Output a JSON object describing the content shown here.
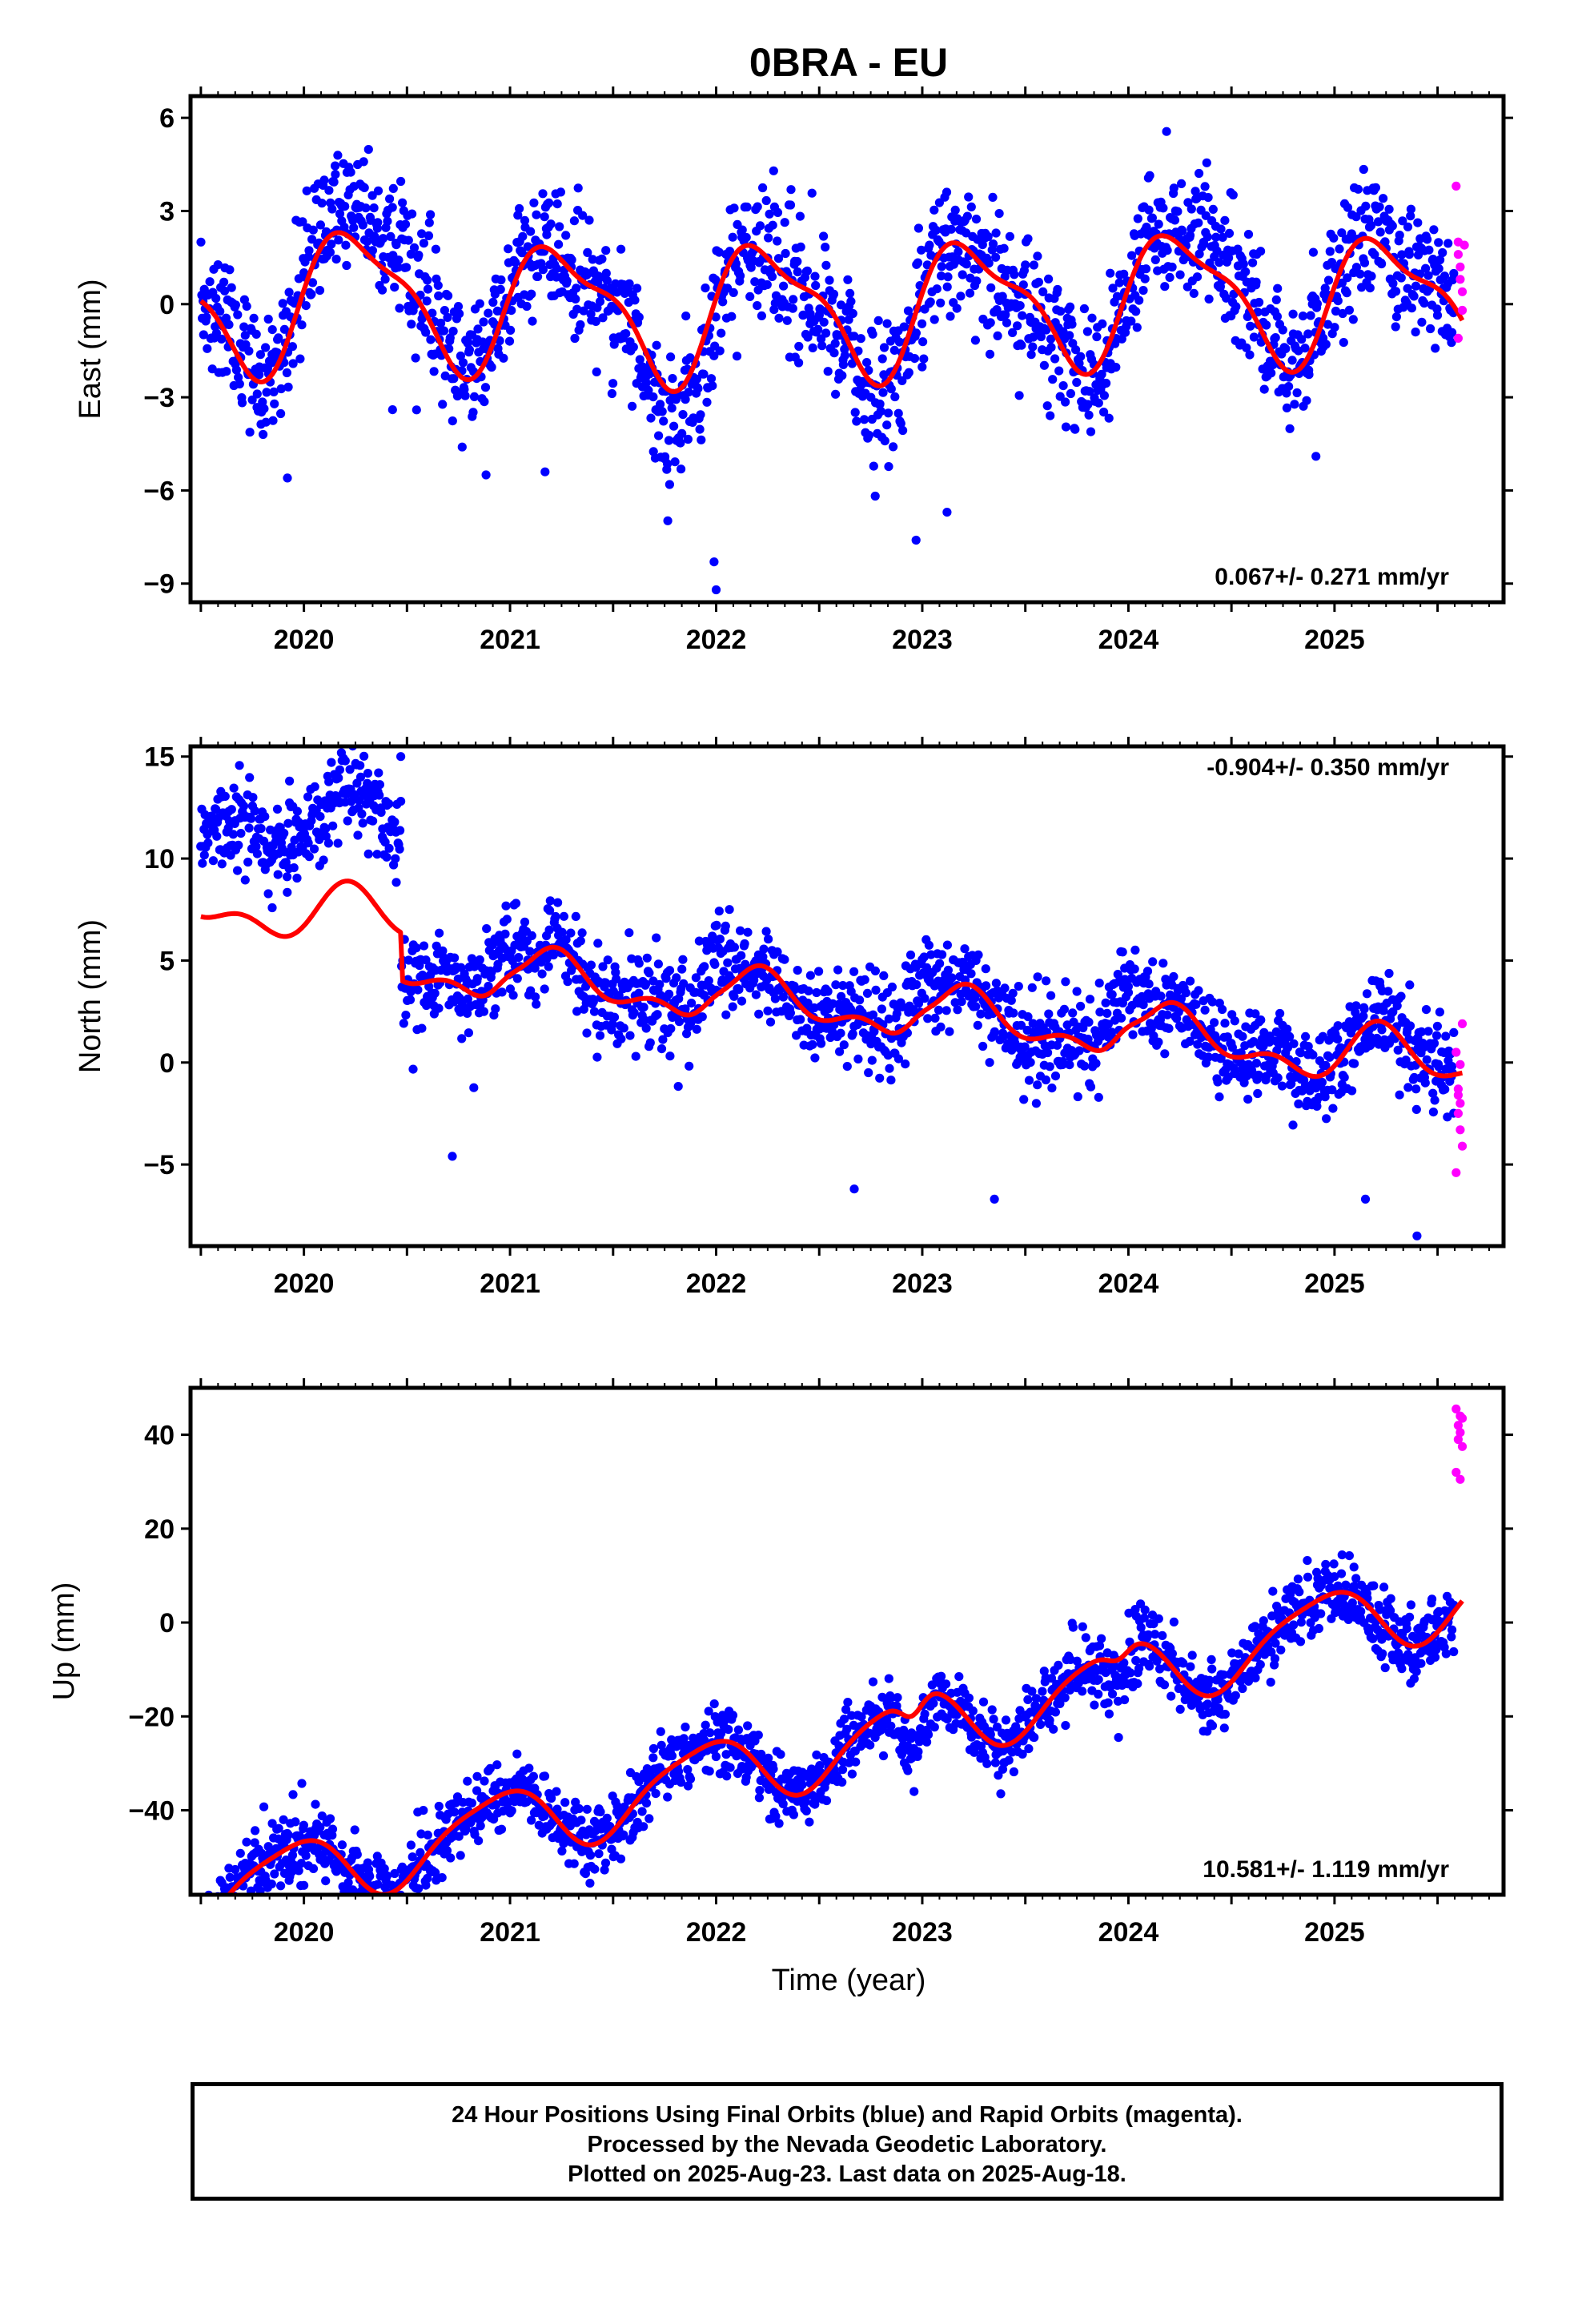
{
  "title": "0BRA - EU",
  "xlabel": "Time (year)",
  "colors": {
    "final": "#0000ff",
    "rapid": "#ff00ff",
    "fit": "#ff0000",
    "axis": "#000000"
  },
  "footer": {
    "line1": "24 Hour Positions Using Final Orbits (blue) and Rapid Orbits (magenta).",
    "line2": "Processed by the Nevada Geodetic Laboratory.",
    "line3": "Plotted on 2025-Aug-23. Last data on 2025-Aug-18."
  },
  "chart_data": [
    {
      "type": "scatter",
      "component": "east",
      "ylabel": "East (mm)",
      "xlim": [
        2019.45,
        2025.82
      ],
      "ylim": [
        -9.6,
        6.7
      ],
      "yticks": [
        -9,
        -6,
        -3,
        0,
        3,
        6
      ],
      "ytick_labels": [
        "−9",
        "−6",
        "−3",
        "0",
        "3",
        "6"
      ],
      "xticks": [
        2020,
        2021,
        2022,
        2023,
        2024,
        2025
      ],
      "xtick_labels": [
        "2020",
        "2021",
        "2022",
        "2023",
        "2024",
        "2025"
      ],
      "rate_label": "0.067+/- 0.271 mm/yr",
      "rate_position": "bottom-right",
      "series": [
        {
          "name": "Final Orbits",
          "color": "#0000ff",
          "model": "seasonal",
          "start": 2019.5,
          "end": 2025.58,
          "n": 1750,
          "offset": 0.0,
          "trend": 0.067,
          "annual": [
            1.8,
            0.05
          ],
          "semiannual": [
            0.55,
            0.35
          ],
          "noise": 1.05,
          "bumps": [
            {
              "t": 2020.3,
              "w": 0.2,
              "a": 1.9
            },
            {
              "t": 2021.8,
              "w": 0.15,
              "a": -1.2
            },
            {
              "t": 2022.75,
              "w": 0.15,
              "a": -0.9
            },
            {
              "t": 2024.35,
              "w": 0.15,
              "a": 1.0
            }
          ],
          "outliers": [
            [
              2019.92,
              -5.6
            ],
            [
              2020.43,
              -3.4
            ],
            [
              2021.17,
              -5.4
            ],
            [
              2021.99,
              -8.3
            ],
            [
              2022.0,
              -9.2
            ],
            [
              2022.97,
              -7.6
            ],
            [
              2023.12,
              -6.7
            ],
            [
              2024.91,
              -4.9
            ]
          ]
        },
        {
          "name": "Rapid Orbits",
          "color": "#ff00ff",
          "model": "list",
          "points": [
            [
              2025.59,
              3.8
            ],
            [
              2025.6,
              2.0
            ],
            [
              2025.6,
              1.6
            ],
            [
              2025.61,
              1.2
            ],
            [
              2025.61,
              0.8
            ],
            [
              2025.62,
              -0.2
            ],
            [
              2025.6,
              -1.1
            ],
            [
              2025.63,
              1.9
            ],
            [
              2025.62,
              0.4
            ]
          ]
        },
        {
          "name": "Fit",
          "color": "#ff0000",
          "model": "fit",
          "start": 2019.5,
          "end": 2025.62,
          "offset": 0.0,
          "trend": 0.067,
          "annual": [
            1.85,
            0.05
          ],
          "semiannual": [
            0.55,
            0.35
          ]
        }
      ]
    },
    {
      "type": "scatter",
      "component": "north",
      "ylabel": "North (mm)",
      "xlim": [
        2019.45,
        2025.82
      ],
      "ylim": [
        -9.0,
        15.5
      ],
      "yticks": [
        -5,
        0,
        5,
        10,
        15
      ],
      "ytick_labels": [
        "−5",
        "0",
        "5",
        "10",
        "15"
      ],
      "xticks": [
        2020,
        2021,
        2022,
        2023,
        2024,
        2025
      ],
      "xtick_labels": [
        "2020",
        "2021",
        "2022",
        "2023",
        "2024",
        "2025"
      ],
      "rate_label": "-0.904+/- 0.350 mm/yr",
      "rate_position": "top-right",
      "series": [
        {
          "name": "Final Orbits",
          "color": "#0000ff",
          "model": "seasonal",
          "start": 2019.5,
          "end": 2025.58,
          "n": 1750,
          "offset": 2.7,
          "trend": -0.904,
          "annual": [
            1.1,
            0.0
          ],
          "semiannual": [
            0.4,
            -0.6
          ],
          "noise": 1.15,
          "steps": [
            {
              "from": 2019.4,
              "to": 2020.47,
              "delta": 6.7
            }
          ],
          "bumps": [
            {
              "t": 2020.98,
              "w": 0.07,
              "a": 2.5
            },
            {
              "t": 2021.98,
              "w": 0.07,
              "a": 2.2
            },
            {
              "t": 2022.98,
              "w": 0.07,
              "a": 2.4
            },
            {
              "t": 2023.98,
              "w": 0.07,
              "a": 3.0
            }
          ],
          "outliers": [
            [
              2020.47,
              15.0
            ],
            [
              2019.93,
              13.8
            ],
            [
              2020.72,
              -4.6
            ],
            [
              2022.67,
              -6.2
            ],
            [
              2023.35,
              -6.7
            ],
            [
              2025.4,
              -8.5
            ],
            [
              2025.15,
              -6.7
            ]
          ]
        },
        {
          "name": "Rapid Orbits",
          "color": "#ff00ff",
          "model": "list",
          "points": [
            [
              2025.62,
              1.9
            ],
            [
              2025.59,
              0.5
            ],
            [
              2025.61,
              -0.1
            ],
            [
              2025.6,
              -1.3
            ],
            [
              2025.6,
              -1.6
            ],
            [
              2025.61,
              -2.0
            ],
            [
              2025.6,
              -2.5
            ],
            [
              2025.61,
              -3.3
            ],
            [
              2025.59,
              -5.4
            ],
            [
              2025.62,
              -4.1
            ]
          ]
        },
        {
          "name": "Fit",
          "color": "#ff0000",
          "model": "fit",
          "start": 2019.5,
          "end": 2025.62,
          "offset": 2.7,
          "trend": -0.904,
          "annual": [
            1.1,
            0.0
          ],
          "semiannual": [
            0.4,
            -0.6
          ]
        }
      ]
    },
    {
      "type": "scatter",
      "component": "up",
      "ylabel": "Up (mm)",
      "xlim": [
        2019.45,
        2025.82
      ],
      "ylim": [
        -58,
        50
      ],
      "yticks": [
        -40,
        -20,
        0,
        20,
        40
      ],
      "ytick_labels": [
        "−40",
        "−20",
        "0",
        "20",
        "40"
      ],
      "xticks": [
        2020,
        2021,
        2022,
        2023,
        2024,
        2025
      ],
      "xtick_labels": [
        "2020",
        "2021",
        "2022",
        "2023",
        "2024",
        "2025"
      ],
      "rate_label": "10.581+/- 1.119 mm/yr",
      "rate_position": "bottom-right",
      "series": [
        {
          "name": "Final Orbits",
          "color": "#0000ff",
          "model": "seasonal",
          "start": 2019.5,
          "end": 2025.58,
          "n": 1750,
          "offset": -27.0,
          "trend": 10.581,
          "annual": [
            -3.0,
            6.8
          ],
          "semiannual": [
            1.5,
            0.0
          ],
          "noise": 3.7,
          "bumps": [
            {
              "t": 2022.95,
              "w": 0.05,
              "a": -12.0
            },
            {
              "t": 2023.95,
              "w": 0.05,
              "a": -8.0
            }
          ],
          "outliers": [
            [
              2019.93,
              -52
            ],
            [
              2020.0,
              -56
            ],
            [
              2021.12,
              -38
            ],
            [
              2022.96,
              -36
            ],
            [
              2023.97,
              -13
            ],
            [
              2025.1,
              2.0
            ]
          ]
        },
        {
          "name": "Rapid Orbits",
          "color": "#ff00ff",
          "model": "list",
          "points": [
            [
              2025.59,
              45.5
            ],
            [
              2025.61,
              44.0
            ],
            [
              2025.6,
              42.0
            ],
            [
              2025.61,
              40.5
            ],
            [
              2025.6,
              39.0
            ],
            [
              2025.62,
              37.5
            ],
            [
              2025.59,
              32.0
            ],
            [
              2025.61,
              30.5
            ],
            [
              2025.62,
              43.5
            ]
          ]
        },
        {
          "name": "Fit",
          "color": "#ff0000",
          "model": "fit",
          "start": 2019.5,
          "end": 2025.62,
          "offset": -27.0,
          "trend": 10.581,
          "annual": [
            -3.0,
            6.8
          ],
          "semiannual": [
            1.5,
            0.0
          ]
        }
      ]
    }
  ]
}
